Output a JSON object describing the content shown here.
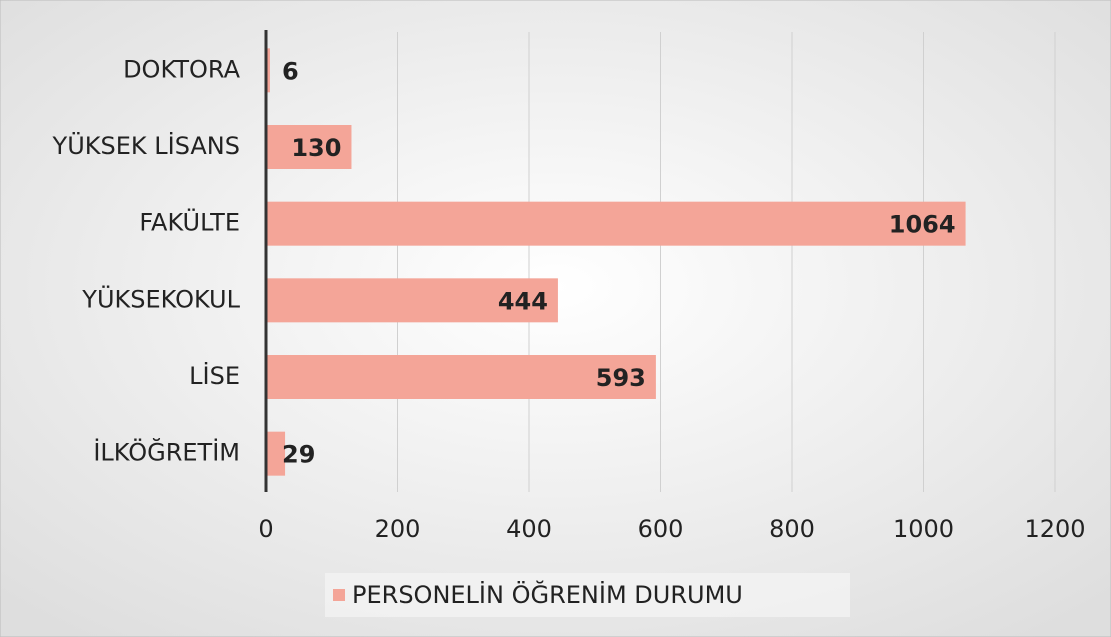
{
  "chart_data": {
    "type": "bar",
    "orientation": "horizontal",
    "categories": [
      "DOKTORA",
      "YÜKSEK LİSANS",
      "FAKÜLTE",
      "YÜKSEKOKUL",
      "LİSE",
      "İLKÖĞRETİM"
    ],
    "series": [
      {
        "name": "PERSONELİN ÖĞRENİM DURUMU",
        "color": "#f4a598",
        "values": [
          6,
          130,
          1064,
          444,
          593,
          29
        ]
      }
    ],
    "xlim": [
      0,
      1200
    ],
    "xticks": [
      0,
      200,
      400,
      600,
      800,
      1000,
      1200
    ],
    "grid": true,
    "legend": "bottom"
  }
}
